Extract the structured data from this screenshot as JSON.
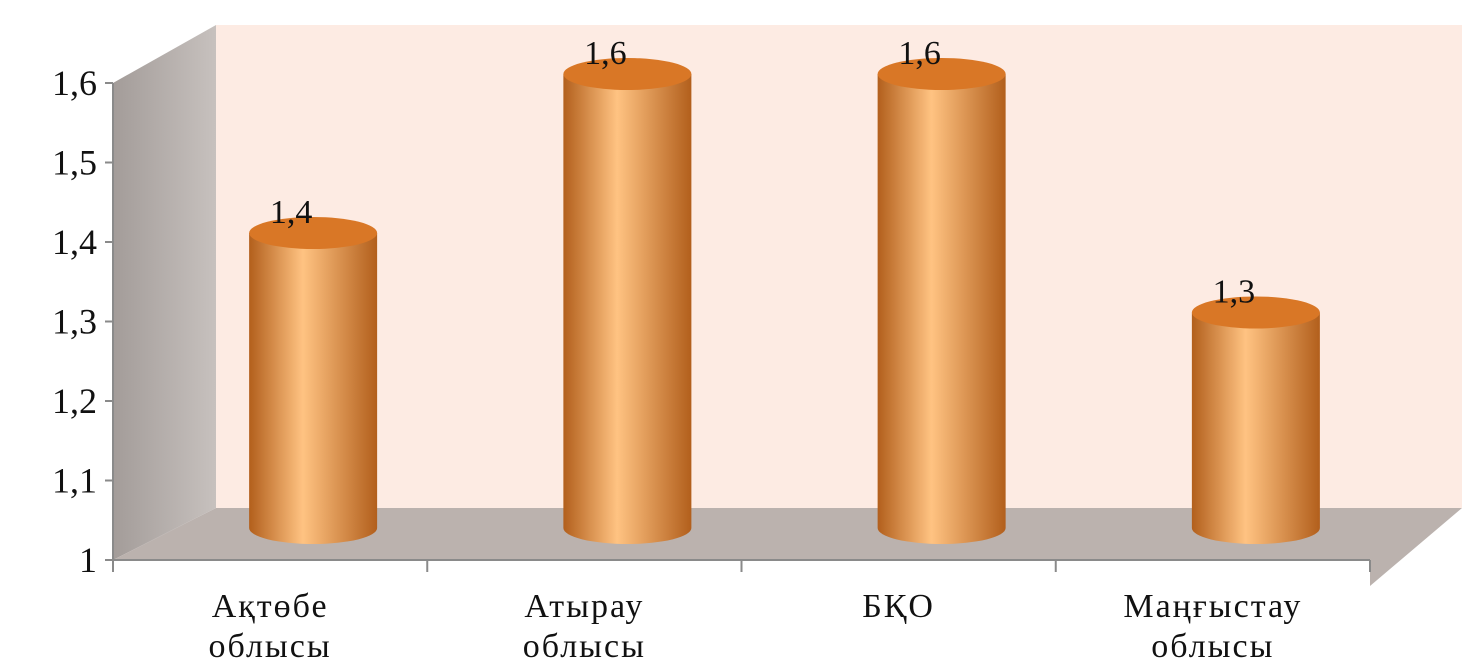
{
  "chart_data": {
    "type": "bar",
    "bar_shape": "cylinder",
    "three_d": true,
    "categories": [
      [
        "Ақтөбе",
        "облысы"
      ],
      [
        "Атырау",
        "облысы"
      ],
      [
        "БҚО"
      ],
      [
        "Маңғыстау",
        "облысы"
      ]
    ],
    "values": [
      1.4,
      1.6,
      1.6,
      1.3
    ],
    "data_labels": [
      "1,4",
      "1,6",
      "1,6",
      "1,3"
    ],
    "ylim": [
      1,
      1.6
    ],
    "y_ticks": [
      1,
      1.1,
      1.2,
      1.3,
      1.4,
      1.5,
      1.6
    ],
    "y_tick_labels": [
      "1",
      "1,1",
      "1,2",
      "1,3",
      "1,4",
      "1,5",
      "1,6"
    ],
    "title": "",
    "xlabel": "",
    "ylabel": "",
    "legend": "none",
    "grid": false,
    "colors": {
      "bar": "#f2913f",
      "bar_highlight": "#ffc382",
      "bar_shadow": "#b25f1c",
      "bar_top": "#d97726",
      "back_wall": "#fdebe3",
      "side_wall": "#b4aeab",
      "floor": "#bbb2ae",
      "axis": "#8a8a8a"
    }
  }
}
